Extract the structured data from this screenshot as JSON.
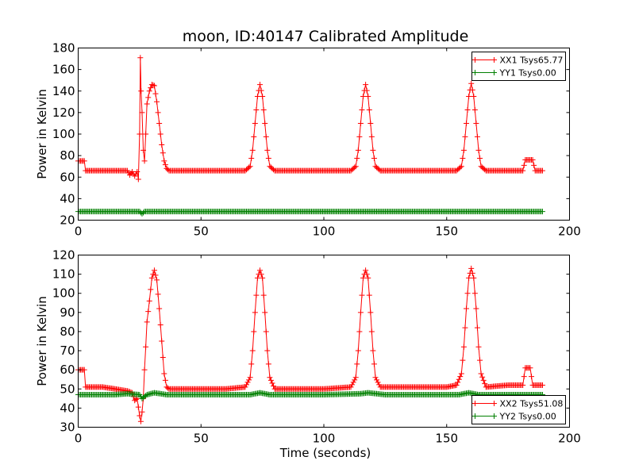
{
  "figure": {
    "title": "moon, ID:40147 Calibrated Amplitude",
    "xlabel": "Time (seconds)",
    "colors": {
      "xx": "#ff0000",
      "yy": "#008000",
      "axes": "#000000",
      "background": "#ffffff"
    }
  },
  "chart_data": [
    {
      "type": "line",
      "title": "moon, ID:40147 Calibrated Amplitude",
      "xlabel": "",
      "ylabel": "Power in Kelvin",
      "xlim": [
        0,
        200
      ],
      "ylim": [
        20,
        180
      ],
      "xticks": [
        0,
        50,
        100,
        150,
        200
      ],
      "yticks": [
        20,
        40,
        60,
        80,
        100,
        120,
        140,
        160,
        180
      ],
      "grid": false,
      "legend_position": "top-right",
      "series": [
        {
          "name": "XX1 Tsys65.77",
          "color": "#ff0000",
          "marker": "+",
          "x": [
            0,
            2.5,
            3,
            10,
            20,
            21,
            22,
            23,
            24,
            24.5,
            25,
            25.3,
            25.6,
            26,
            26.5,
            27,
            27.5,
            28,
            29,
            30,
            31,
            32,
            33,
            34,
            35,
            36,
            37,
            68,
            70,
            71,
            72,
            73,
            74,
            75,
            76,
            77,
            78,
            80,
            111,
            113,
            114,
            115,
            116,
            117,
            118,
            119,
            120,
            121,
            123,
            154,
            156,
            157,
            158,
            159,
            160,
            161,
            162,
            163,
            164,
            166,
            181,
            182,
            185,
            186,
            189
          ],
          "y": [
            75,
            75,
            66,
            66,
            66,
            62,
            65,
            61,
            65,
            58,
            100,
            171,
            140,
            120,
            85,
            75,
            100,
            128,
            140,
            146,
            145,
            130,
            110,
            90,
            75,
            68,
            66,
            66,
            70,
            85,
            110,
            135,
            146,
            135,
            110,
            85,
            70,
            66,
            66,
            70,
            85,
            110,
            135,
            146,
            135,
            110,
            85,
            70,
            66,
            66,
            70,
            85,
            110,
            135,
            147,
            135,
            110,
            85,
            70,
            66,
            66,
            76,
            76,
            66,
            66
          ]
        },
        {
          "name": "YY1 Tsys0.00",
          "color": "#008000",
          "marker": "+",
          "x": [
            0,
            25,
            26,
            27,
            189
          ],
          "y": [
            28,
            28,
            26,
            28,
            28
          ]
        }
      ]
    },
    {
      "type": "line",
      "title": "",
      "xlabel": "Time (seconds)",
      "ylabel": "Power in Kelvin",
      "xlim": [
        0,
        200
      ],
      "ylim": [
        30,
        120
      ],
      "xticks": [
        0,
        50,
        100,
        150,
        200
      ],
      "yticks": [
        30,
        40,
        50,
        60,
        70,
        80,
        90,
        100,
        110,
        120
      ],
      "grid": false,
      "legend_position": "bottom-right",
      "series": [
        {
          "name": "XX2 Tsys51.08",
          "color": "#ff0000",
          "marker": "+",
          "x": [
            0,
            2.5,
            3,
            10,
            15,
            20,
            22,
            23,
            24,
            25,
            25.5,
            26,
            26.5,
            27,
            27.5,
            28,
            29,
            30,
            31,
            32,
            33,
            34,
            35,
            36,
            37,
            60,
            68,
            70,
            71,
            72,
            73,
            74,
            75,
            76,
            77,
            78,
            80,
            100,
            111,
            113,
            114,
            115,
            116,
            117,
            118,
            119,
            120,
            121,
            123,
            150,
            154,
            156,
            157,
            158,
            159,
            160,
            161,
            162,
            163,
            164,
            166,
            175,
            181,
            182,
            184,
            185,
            189
          ],
          "y": [
            60,
            60,
            51,
            51,
            50,
            49,
            48,
            44,
            45,
            36,
            33,
            38,
            45,
            60,
            72,
            85,
            96,
            108,
            112,
            107,
            92,
            75,
            58,
            51,
            50,
            50,
            51,
            56,
            70,
            90,
            108,
            112,
            108,
            90,
            70,
            56,
            50,
            50,
            51,
            56,
            70,
            90,
            108,
            112,
            108,
            90,
            70,
            56,
            51,
            51,
            52,
            58,
            72,
            92,
            108,
            113,
            108,
            92,
            72,
            58,
            51,
            52,
            52,
            61,
            61,
            52,
            52
          ]
        },
        {
          "name": "YY2 Tsys0.00",
          "color": "#008000",
          "marker": "+",
          "x": [
            0,
            15,
            20,
            25,
            26,
            28,
            31,
            36,
            50,
            70,
            74,
            78,
            100,
            115,
            118,
            125,
            155,
            159,
            163,
            180,
            189
          ],
          "y": [
            47,
            47,
            47.5,
            47,
            45,
            47,
            48,
            47,
            47,
            47,
            48,
            47,
            47,
            47.5,
            48,
            47,
            47,
            48,
            47,
            47,
            47
          ]
        }
      ]
    }
  ]
}
